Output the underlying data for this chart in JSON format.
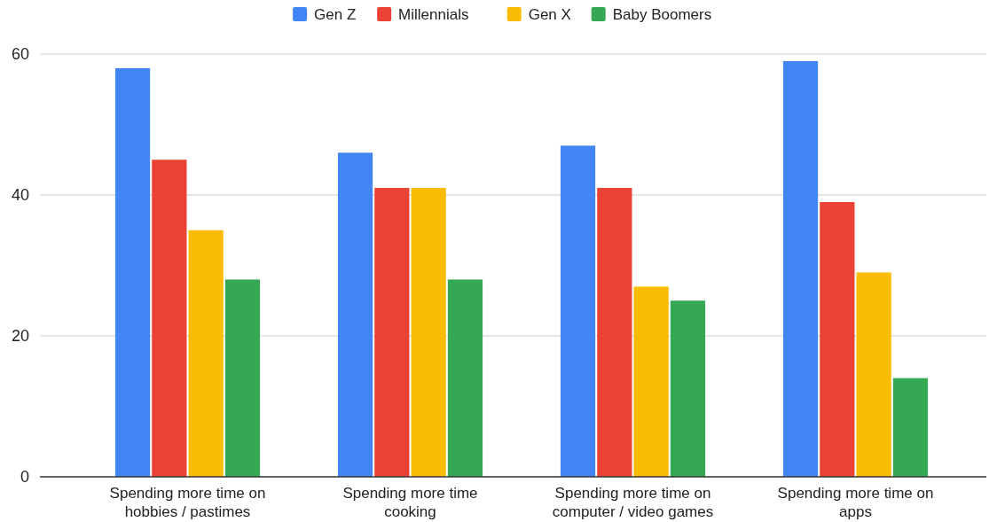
{
  "chart_data": {
    "type": "bar",
    "categories": [
      "Spending more time on hobbies / pastimes",
      "Spending more time cooking",
      "Spending more time on computer / video games",
      "Spending more time on apps"
    ],
    "series": [
      {
        "name": "Gen Z",
        "color": "#4285f4",
        "values": [
          58,
          46,
          47,
          59
        ]
      },
      {
        "name": "Millennials",
        "color": "#ea4335",
        "values": [
          45,
          41,
          41,
          39
        ]
      },
      {
        "name": "Gen X",
        "color": "#fbbc04",
        "values": [
          35,
          41,
          27,
          29
        ]
      },
      {
        "name": "Baby Boomers",
        "color": "#34a853",
        "values": [
          28,
          28,
          25,
          14
        ]
      }
    ],
    "ylim": [
      0,
      60
    ],
    "yticks": [
      0,
      20,
      40,
      60
    ],
    "grid": "y",
    "legend": "top"
  }
}
